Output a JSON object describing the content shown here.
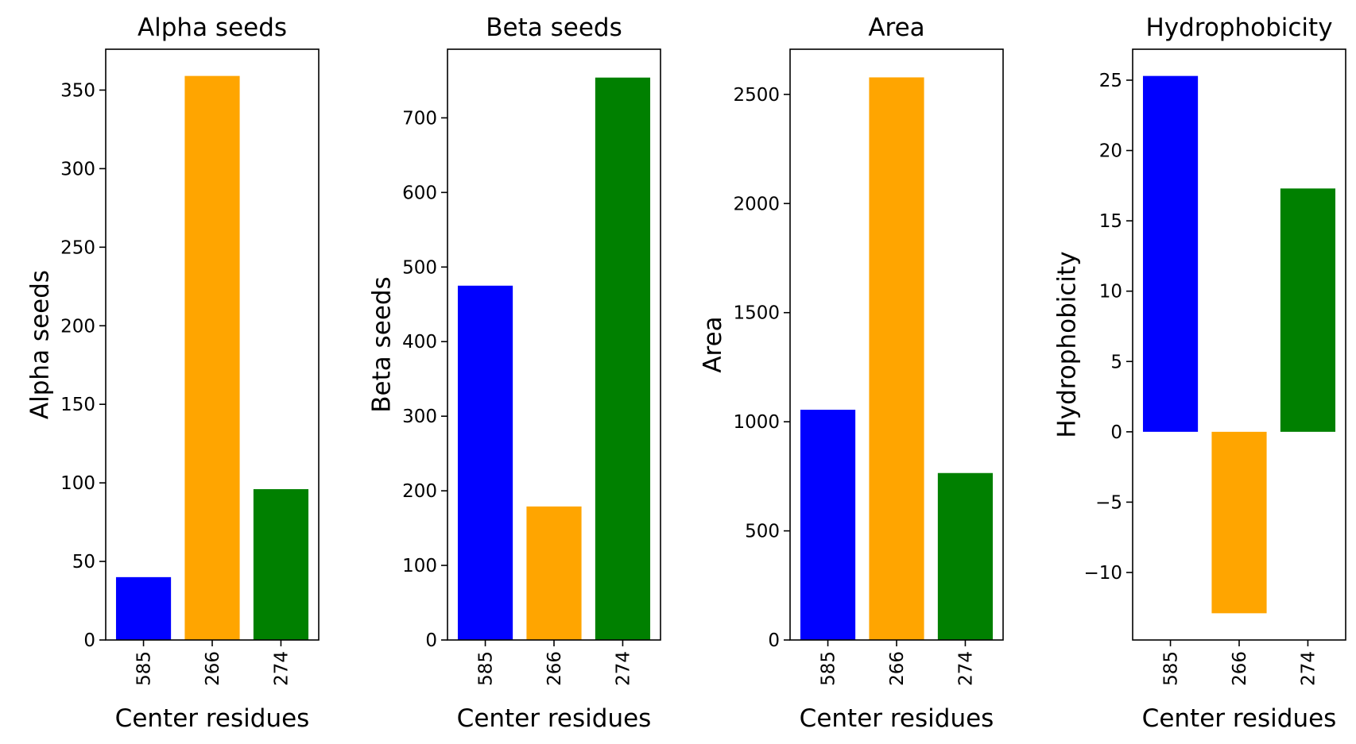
{
  "chart_data": [
    {
      "type": "bar",
      "title": "Alpha seeds",
      "xlabel": "Center residues",
      "ylabel": "Alpha seeds",
      "categories": [
        "585",
        "266",
        "274"
      ],
      "values": [
        40,
        359,
        96
      ],
      "colors": [
        "#0000ff",
        "#ffa500",
        "#008000"
      ],
      "ylim": [
        0,
        376
      ],
      "yticks": [
        0,
        50,
        100,
        150,
        200,
        250,
        300,
        350
      ],
      "ytick_labels": [
        "0",
        "50",
        "100",
        "150",
        "200",
        "250",
        "300",
        "350"
      ],
      "grid": false
    },
    {
      "type": "bar",
      "title": "Beta seeds",
      "xlabel": "Center residues",
      "ylabel": "Beta seeds",
      "categories": [
        "585",
        "266",
        "274"
      ],
      "values": [
        475,
        179,
        754
      ],
      "colors": [
        "#0000ff",
        "#ffa500",
        "#008000"
      ],
      "ylim": [
        0,
        792
      ],
      "yticks": [
        0,
        100,
        200,
        300,
        400,
        500,
        600,
        700
      ],
      "ytick_labels": [
        "0",
        "100",
        "200",
        "300",
        "400",
        "500",
        "600",
        "700"
      ],
      "grid": false
    },
    {
      "type": "bar",
      "title": "Area",
      "xlabel": "Center residues",
      "ylabel": "Area",
      "categories": [
        "585",
        "266",
        "274"
      ],
      "values": [
        1055,
        2578,
        765
      ],
      "colors": [
        "#0000ff",
        "#ffa500",
        "#008000"
      ],
      "ylim": [
        0,
        2707
      ],
      "yticks": [
        0,
        500,
        1000,
        1500,
        2000,
        2500
      ],
      "ytick_labels": [
        "0",
        "500",
        "1000",
        "1500",
        "2000",
        "2500"
      ],
      "grid": false
    },
    {
      "type": "bar",
      "title": "Hydrophobicity",
      "xlabel": "Center residues",
      "ylabel": "Hydrophobicity",
      "categories": [
        "585",
        "266",
        "274"
      ],
      "values": [
        25.3,
        -12.9,
        17.3
      ],
      "colors": [
        "#0000ff",
        "#ffa500",
        "#008000"
      ],
      "ylim": [
        -14.8,
        27.2
      ],
      "yticks": [
        -10,
        -5,
        0,
        5,
        10,
        15,
        20,
        25
      ],
      "ytick_labels": [
        "−10",
        "−5",
        "0",
        "5",
        "10",
        "15",
        "20",
        "25"
      ],
      "grid": false
    }
  ]
}
